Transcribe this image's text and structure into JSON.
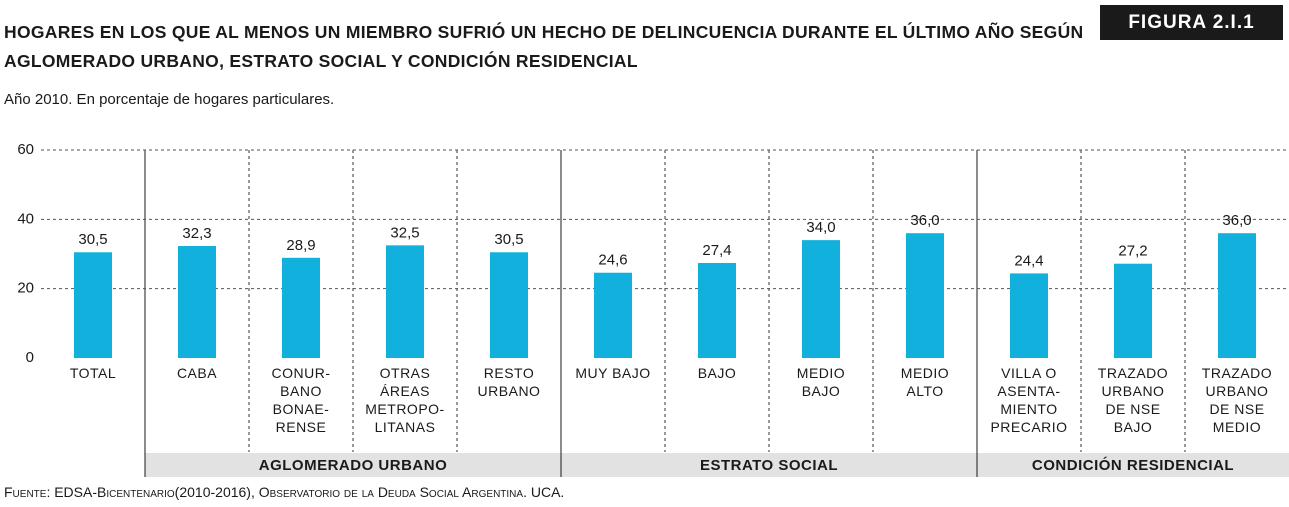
{
  "figure_label": "FIGURA 2.I.1",
  "chart_data": {
    "type": "bar",
    "title": "HOGARES EN LOS QUE AL MENOS UN MIEMBRO SUFRIÓ UN HECHO DE DELINCUENCIA DURANTE EL ÚLTIMO AÑO SEGÚN AGLOMERADO URBANO, ESTRATO SOCIAL Y CONDICIÓN RESIDENCIAL",
    "subtitle": "Año 2010. En porcentaje de hogares particulares.",
    "categories": [
      "TOTAL",
      "CABA",
      "CONUR-\nBANO\nBONAE-\nRENSE",
      "OTRAS\nÁREAS\nMETROPO-\nLITANAS",
      "RESTO\nURBANO",
      "MUY BAJO",
      "BAJO",
      "MEDIO\nBAJO",
      "MEDIO\nALTO",
      "VILLA O\nASENTA-\nMIENTO\nPRECARIO",
      "TRAZADO\nURBANO\nDE NSE\nBAJO",
      "TRAZADO\nURBANO\nDE NSE\nMEDIO"
    ],
    "values": [
      30.5,
      32.3,
      28.9,
      32.5,
      30.5,
      24.6,
      27.4,
      34.0,
      36.0,
      24.4,
      27.2,
      36.0
    ],
    "value_labels": [
      "30,5",
      "32,3",
      "28,9",
      "32,5",
      "30,5",
      "24,6",
      "27,4",
      "34,0",
      "36,0",
      "24,4",
      "27,2",
      "36,0"
    ],
    "groups": [
      {
        "label": "AGLOMERADO URBANO",
        "size": 4
      },
      {
        "label": "ESTRATO SOCIAL",
        "size": 4
      },
      {
        "label": "CONDICIÓN RESIDENCIAL",
        "size": 3
      }
    ],
    "color": "#12b0dc",
    "ylim": [
      0,
      60
    ],
    "yticks": [
      0,
      20,
      40,
      60
    ],
    "grid": true,
    "source": "Fuente: EDSA-Bicentenario(2010-2016), Observatorio de la Deuda Social Argentina. UCA."
  }
}
